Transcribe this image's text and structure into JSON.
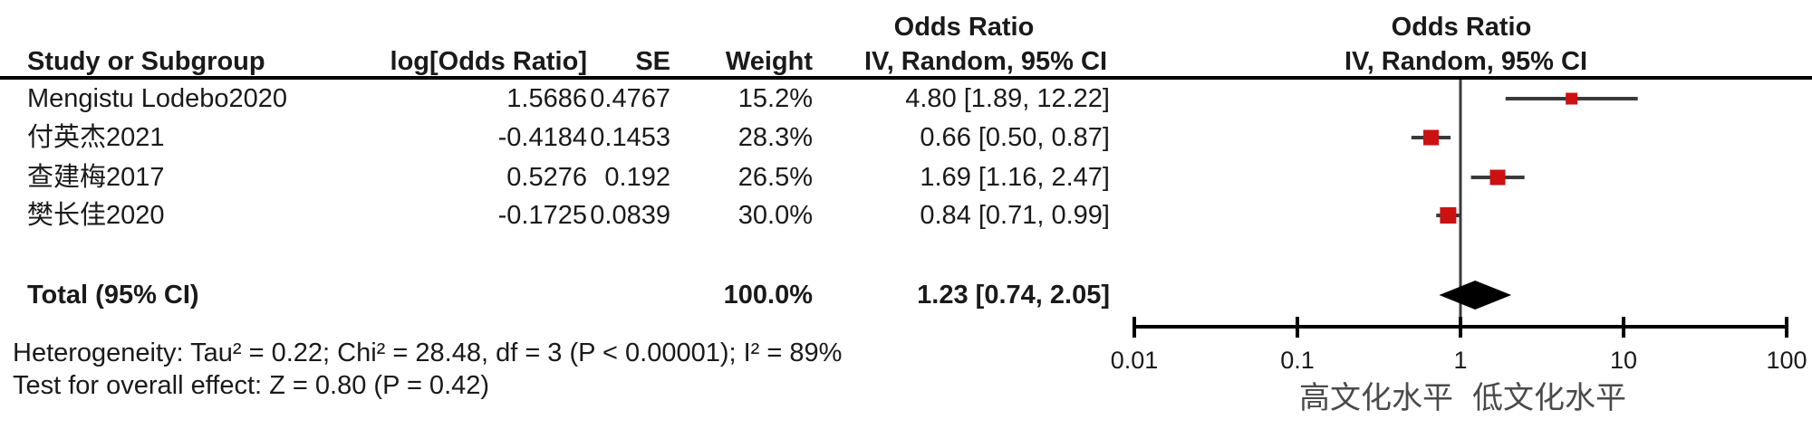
{
  "table": {
    "headers": {
      "study": "Study or Subgroup",
      "log_or": "log[Odds Ratio]",
      "se": "SE",
      "weight": "Weight",
      "or_title_left": "Odds Ratio",
      "ci_header_left": "IV, Random, 95% CI",
      "or_title_right": "Odds Ratio",
      "ci_header_right": "IV, Random, 95% CI"
    },
    "rows": [
      {
        "study": "Mengistu Lodebo2020",
        "log_or": "1.5686",
        "se": "0.4767",
        "weight": "15.2%",
        "ci": "4.80 [1.89, 12.22]"
      },
      {
        "study": "付英杰2021",
        "log_or": "-0.4184",
        "se": "0.1453",
        "weight": "28.3%",
        "ci": "0.66 [0.50, 0.87]"
      },
      {
        "study": "查建梅2017",
        "log_or": "0.5276",
        "se": "0.192",
        "weight": "26.5%",
        "ci": "1.69 [1.16, 2.47]"
      },
      {
        "study": "樊长佳2020",
        "log_or": "-0.1725",
        "se": "0.0839",
        "weight": "30.0%",
        "ci": "0.84 [0.71, 0.99]"
      }
    ],
    "total": {
      "label": "Total (95% CI)",
      "weight": "100.0%",
      "ci": "1.23 [0.74, 2.05]"
    }
  },
  "footnotes": {
    "heterogeneity": "Heterogeneity: Tau² = 0.22; Chi² = 28.48, df = 3 (P < 0.00001); I² = 89%",
    "overall_effect": "Test for overall effect: Z = 0.80 (P = 0.42)"
  },
  "chart_data": {
    "type": "scatter",
    "title": "Odds Ratio IV, Random, 95% CI",
    "x_scale": "log",
    "xlim": [
      0.01,
      100
    ],
    "x_ticks": [
      0.01,
      0.1,
      1,
      10,
      100
    ],
    "x_tick_labels": [
      "0.01",
      "0.1",
      "1",
      "10",
      "100"
    ],
    "null_line_x": 1,
    "grid": false,
    "studies": [
      {
        "label": "Mengistu Lodebo2020",
        "or": 4.8,
        "ci_low": 1.89,
        "ci_high": 12.22,
        "weight_pct": 15.2
      },
      {
        "label": "付英杰2021",
        "or": 0.66,
        "ci_low": 0.5,
        "ci_high": 0.87,
        "weight_pct": 28.3
      },
      {
        "label": "查建梅2017",
        "or": 1.69,
        "ci_low": 1.16,
        "ci_high": 2.47,
        "weight_pct": 26.5
      },
      {
        "label": "樊长佳2020",
        "or": 0.84,
        "ci_low": 0.71,
        "ci_high": 0.99,
        "weight_pct": 30.0
      }
    ],
    "total": {
      "label": "Total (95% CI)",
      "or": 1.23,
      "ci_low": 0.74,
      "ci_high": 2.05,
      "weight_pct": 100.0,
      "marker": "diamond"
    },
    "axis_left_label": "高文化水平",
    "axis_right_label": "低文化水平"
  },
  "colors": {
    "square": "#CC1111",
    "diamond": "#000000",
    "ci_line": "#3A3A3A",
    "axis": "#000000",
    "text": "#1A1A1A",
    "cjk_axis_label": "#4A4A4C"
  }
}
